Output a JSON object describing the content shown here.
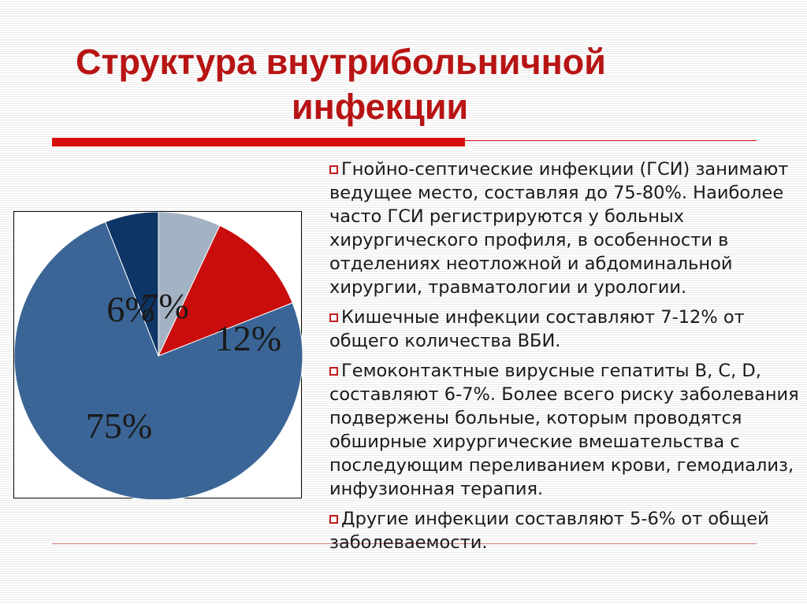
{
  "title": {
    "line1": "Структура внутрибольничной",
    "line2": "инфекции"
  },
  "colors": {
    "title": "#b81414",
    "accent_bar": "#d70e0e",
    "bullet_icon": "#c21d1d"
  },
  "bullets": [
    {
      "icon": "hollow-square-icon",
      "text": "Гнойно-септические инфекции (ГСИ) занимают ведущее место, составляя до 75-80%. Наиболее часто ГСИ регистрируются у больных хирургического профиля, в особенности в отделениях неотложной и абдоминальной хирургии, травматологии и урологии."
    },
    {
      "icon": "hollow-square-icon",
      "text": "Кишечные инфекции составляют 7-12% от общего количества ВБИ."
    },
    {
      "icon": "hollow-square-icon",
      "text": "Гемоконтактные вирусные гепатиты B, C, D, составляют 6-7%. Более всего риску заболевания подвержены больные, которым проводятся обширные хирургические вмешательства с последующим переливанием крови, гемодиализ, инфузионная терапия."
    },
    {
      "icon": "hollow-square-icon",
      "text": "Другие инфекции составляют 5-6% от общей заболеваемости."
    }
  ],
  "chart_data": {
    "type": "pie",
    "title": "",
    "start": "12 o'clock, clockwise",
    "slices": [
      {
        "label": "7%",
        "value": 7,
        "color": "#a4b3c3"
      },
      {
        "label": "12%",
        "value": 12,
        "color": "#c90c0c"
      },
      {
        "label": "75%",
        "value": 75,
        "color": "#3a6596"
      },
      {
        "label": "6%",
        "value": 6,
        "color": "#0d3566"
      }
    ]
  }
}
